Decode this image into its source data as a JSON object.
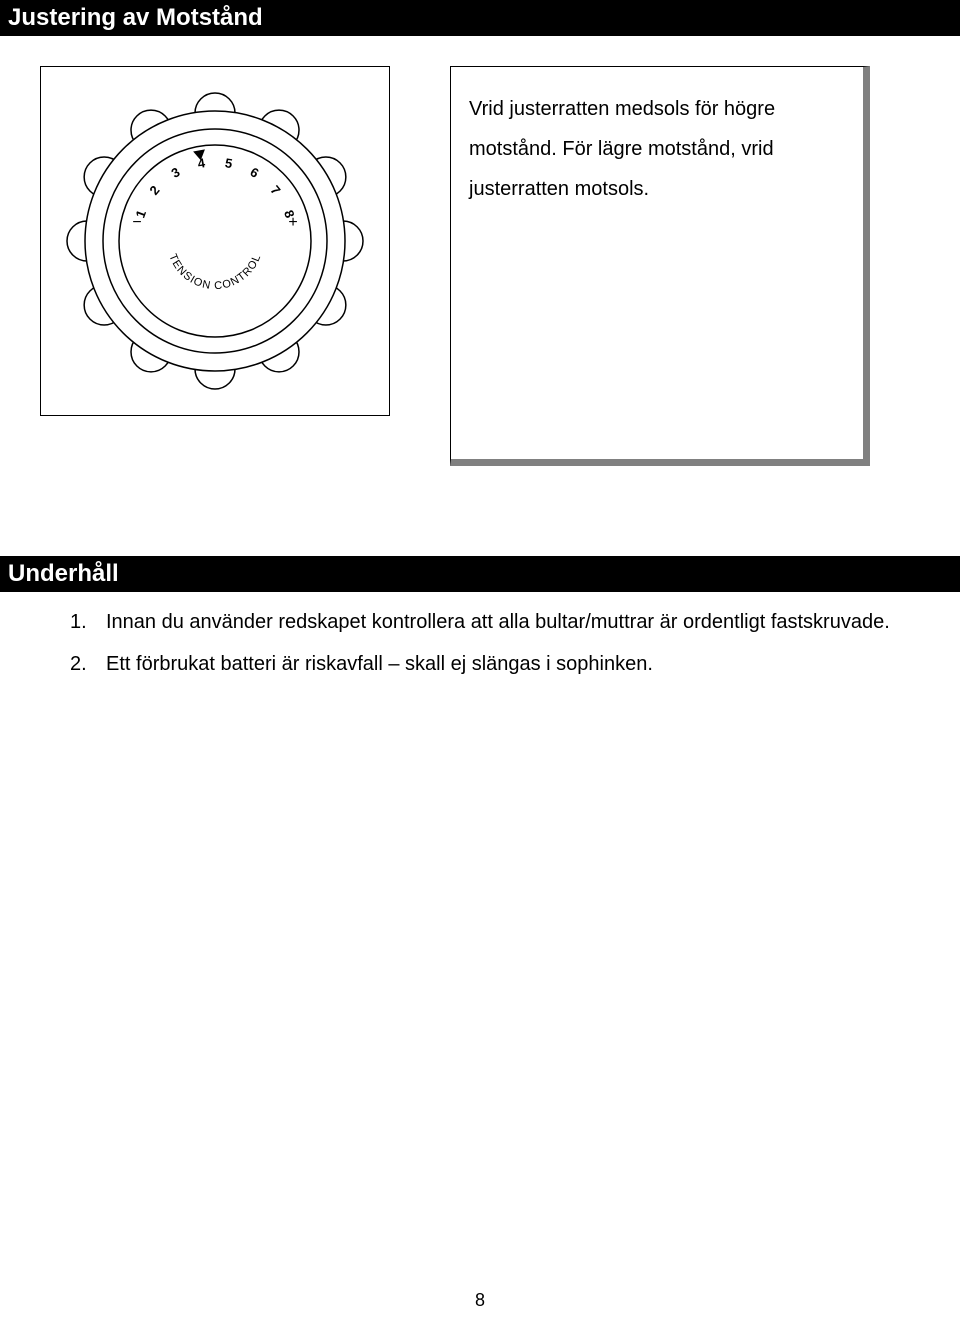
{
  "section1": {
    "header": "Justering av Motstånd",
    "paragraph": "Vrid justerratten medsols för högre motstånd. För lägre motstånd, vrid justerratten motsols."
  },
  "dial": {
    "numbers": [
      "1",
      "2",
      "3",
      "4",
      "5",
      "6",
      "7",
      "8"
    ],
    "minus": "−",
    "plus": "+",
    "curve_top": "TENSION",
    "curve_bottom": "CONTROL",
    "stroke": "#000000",
    "fill": "#ffffff",
    "knob_count": 12,
    "outer_r": 130,
    "ring_r": 112,
    "inner_r": 96,
    "knob_r": 20,
    "knob_orbit": 128,
    "font_num": 13,
    "font_sign": 16,
    "font_curve": 11
  },
  "section2": {
    "header": "Underhåll",
    "items": [
      {
        "n": "1.",
        "t": "Innan du använder redskapet kontrollera att alla bultar/muttrar är ordentligt fastskruvade."
      },
      {
        "n": "2.",
        "t": "Ett förbrukat batteri är riskavfall – skall ej slängas i sophinken."
      }
    ]
  },
  "page_number": "8",
  "colors": {
    "header_bg": "#000000",
    "header_fg": "#ffffff",
    "page_bg": "#ffffff",
    "shadow": "#808080",
    "text": "#000000"
  }
}
